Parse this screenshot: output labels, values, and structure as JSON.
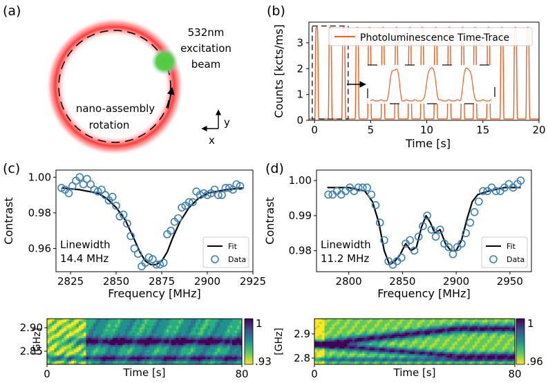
{
  "panel_labels": {
    "a": "(a)",
    "b": "(b)",
    "c": "(c)",
    "d": "(d)"
  },
  "panel_a": {
    "beam_label_1": "532nm",
    "beam_label_2": "excitation",
    "beam_label_3": "beam",
    "rotation_label_1": "nano-assembly",
    "rotation_label_2": "rotation",
    "axis_y": "y",
    "axis_x": "x",
    "colors": {
      "ring": "#ff3a3a",
      "beam": "#4fcf4f"
    }
  },
  "chart_data": [
    {
      "id": "b",
      "type": "line",
      "title": "",
      "xlabel": "Time [s]",
      "ylabel": "Counts [kcts/ms]",
      "xlim": [
        -0.5,
        20
      ],
      "ylim": [
        0,
        3.8
      ],
      "xticks": [
        0,
        5,
        10,
        15,
        20
      ],
      "yticks": [
        0,
        1,
        2,
        3
      ],
      "legend": "Photoluminescence Time-Trace",
      "color": "#ff5a1a",
      "peak_times": [
        0.2,
        1.4,
        2.6,
        3.8,
        4.9,
        6.1,
        7.3,
        8.5,
        9.6,
        10.8,
        12.0,
        13.2,
        14.3,
        15.5,
        16.7,
        17.9,
        19.0
      ],
      "peak_height": 3.55,
      "inset": "zoom of 0–3 s"
    },
    {
      "id": "c",
      "type": "scatter",
      "xlabel": "Frequency [MHz]",
      "ylabel": "Contrast",
      "xlim": [
        2817,
        2925
      ],
      "ylim": [
        0.947,
        1.004
      ],
      "xticks": [
        2825,
        2850,
        2875,
        2900,
        2925
      ],
      "yticks": [
        0.96,
        0.98,
        1.0
      ],
      "ytick_labels": [
        "0.96",
        "0.98",
        "1.00"
      ],
      "annotation_1": "Linewidth",
      "annotation_2": "14.4 MHz",
      "legend": {
        "fit": "Fit",
        "data": "Data"
      },
      "data_x": [
        2820,
        2822,
        2824,
        2826,
        2828,
        2830,
        2832,
        2834,
        2836,
        2838,
        2840,
        2842,
        2844,
        2846,
        2848,
        2850,
        2852,
        2854,
        2856,
        2858,
        2860,
        2862,
        2864,
        2866,
        2868,
        2870,
        2872,
        2874,
        2876,
        2878,
        2880,
        2882,
        2884,
        2886,
        2888,
        2890,
        2892,
        2894,
        2896,
        2898,
        2900,
        2902,
        2904,
        2906,
        2908,
        2910,
        2912,
        2914,
        2916,
        2918
      ],
      "data_y": [
        0.994,
        0.993,
        0.991,
        0.995,
        0.998,
        1.0,
        0.996,
        0.999,
        0.996,
        0.993,
        0.992,
        0.993,
        0.99,
        0.987,
        0.989,
        0.984,
        0.978,
        0.979,
        0.974,
        0.967,
        0.96,
        0.957,
        0.95,
        0.952,
        0.955,
        0.954,
        0.951,
        0.951,
        0.952,
        0.968,
        0.97,
        0.975,
        0.977,
        0.983,
        0.984,
        0.986,
        0.986,
        0.992,
        0.99,
        0.991,
        0.99,
        0.991,
        0.993,
        0.99,
        0.99,
        0.994,
        0.994,
        0.993,
        0.996,
        0.995
      ],
      "fit_x": [
        2820,
        2830,
        2840,
        2845,
        2850,
        2855,
        2860,
        2863,
        2866,
        2869,
        2872,
        2875,
        2878,
        2881,
        2885,
        2890,
        2895,
        2900,
        2910,
        2920
      ],
      "fit_y": [
        0.994,
        0.993,
        0.991,
        0.988,
        0.983,
        0.976,
        0.965,
        0.958,
        0.953,
        0.951,
        0.951,
        0.953,
        0.958,
        0.966,
        0.975,
        0.983,
        0.988,
        0.991,
        0.993,
        0.994
      ]
    },
    {
      "id": "d",
      "type": "scatter",
      "xlabel": "Frequency [MHz]",
      "ylabel": "Contrast",
      "xlim": [
        2770,
        2970
      ],
      "ylim": [
        0.974,
        1.003
      ],
      "xticks": [
        2800,
        2850,
        2900,
        2950
      ],
      "yticks": [
        0.98,
        0.99,
        1.0
      ],
      "ytick_labels": [
        "0.98",
        "0.99",
        "1.00"
      ],
      "annotation_1": "Linewidth",
      "annotation_2": "11.2 MHz",
      "legend": {
        "fit": "Fit",
        "data": "Data"
      },
      "data_x": [
        2781,
        2785,
        2789,
        2793,
        2797,
        2801,
        2805,
        2809,
        2813,
        2817,
        2821,
        2825,
        2829,
        2833,
        2837,
        2841,
        2845,
        2849,
        2853,
        2857,
        2861,
        2865,
        2869,
        2873,
        2877,
        2881,
        2885,
        2889,
        2893,
        2897,
        2901,
        2905,
        2909,
        2913,
        2917,
        2921,
        2925,
        2929,
        2933,
        2937,
        2941,
        2945,
        2949,
        2953,
        2957,
        2960
      ],
      "data_y": [
        0.996,
        0.996,
        0.997,
        0.996,
        0.997,
        0.998,
        0.997,
        0.998,
        0.998,
        0.998,
        0.996,
        0.993,
        0.988,
        0.983,
        0.977,
        0.976,
        0.977,
        0.978,
        0.982,
        0.983,
        0.98,
        0.984,
        0.987,
        0.99,
        0.986,
        0.984,
        0.986,
        0.982,
        0.981,
        0.979,
        0.981,
        0.982,
        0.985,
        0.988,
        0.991,
        0.994,
        0.997,
        0.997,
        0.998,
        0.997,
        0.997,
        0.998,
        0.999,
        0.998,
        0.999,
        1.0
      ],
      "fit_x": [
        2780,
        2800,
        2815,
        2822,
        2828,
        2833,
        2838,
        2843,
        2848,
        2853,
        2858,
        2863,
        2868,
        2872,
        2876,
        2880,
        2885,
        2890,
        2895,
        2900,
        2905,
        2910,
        2915,
        2920,
        2930,
        2945,
        2960
      ],
      "fit_y": [
        0.998,
        0.998,
        0.997,
        0.994,
        0.988,
        0.98,
        0.976,
        0.977,
        0.979,
        0.982,
        0.98,
        0.981,
        0.987,
        0.99,
        0.988,
        0.985,
        0.986,
        0.982,
        0.98,
        0.98,
        0.983,
        0.989,
        0.994,
        0.996,
        0.997,
        0.998,
        0.998
      ]
    },
    {
      "id": "e",
      "type": "heatmap",
      "xlabel": "Time [s]",
      "ylabel": "[GHz]",
      "xlim": [
        0,
        80
      ],
      "ylim": [
        2.82,
        2.92
      ],
      "xtick_labels": [
        "0",
        "80"
      ],
      "ytick_labels": [
        "2.90",
        "2.85"
      ],
      "colorbar_max": "1",
      "colorbar_min": ".93"
    },
    {
      "id": "f",
      "type": "heatmap",
      "xlabel": "Time [s]",
      "ylabel": "[GHz]",
      "xlim": [
        0,
        80
      ],
      "ylim": [
        2.77,
        2.97
      ],
      "xtick_labels": [
        "0",
        "80"
      ],
      "ytick_labels": [
        "2.9",
        "2.8"
      ],
      "colorbar_max": "1",
      "colorbar_min": ".96"
    }
  ]
}
